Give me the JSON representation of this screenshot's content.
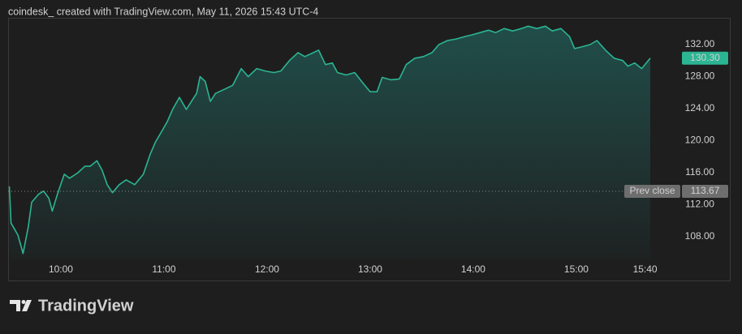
{
  "header": "coindesk_ created with TradingView.com, May 11, 2026 15:43 UTC-4",
  "footer": "TradingView",
  "chart_data": {
    "type": "area",
    "x": [
      570,
      571,
      575,
      578,
      581,
      583,
      587,
      590,
      593,
      595,
      598,
      602,
      605,
      610,
      614,
      617,
      621,
      624,
      627,
      630,
      634,
      638,
      643,
      648,
      652,
      655,
      658,
      662,
      665,
      669,
      673,
      676,
      679,
      681,
      684,
      687,
      690,
      695,
      700,
      705,
      709,
      714,
      719,
      724,
      728,
      733,
      738,
      742,
      747,
      750,
      754,
      758,
      761,
      766,
      771,
      775,
      780,
      784,
      787,
      792,
      797,
      801,
      806,
      811,
      816,
      820,
      825,
      830,
      835,
      839,
      844,
      849,
      853,
      858,
      863,
      868,
      872,
      877,
      882,
      886,
      891,
      896,
      899,
      903,
      908,
      912,
      917,
      922,
      927,
      930,
      934,
      938,
      943
    ],
    "series": [
      {
        "color": "#2bb592",
        "values": [
          114.3,
          109.7,
          108.2,
          105.9,
          109.2,
          112.3,
          113.3,
          113.7,
          112.8,
          111.2,
          113.3,
          115.8,
          115.3,
          116.0,
          116.8,
          116.8,
          117.5,
          116.3,
          114.5,
          113.5,
          114.5,
          115.1,
          114.5,
          115.8,
          118.3,
          119.8,
          120.9,
          122.4,
          123.9,
          125.4,
          123.9,
          124.9,
          125.9,
          128.0,
          127.4,
          124.9,
          125.9,
          126.4,
          126.9,
          129.0,
          128.0,
          129.0,
          128.7,
          128.5,
          128.7,
          130.0,
          131.0,
          130.5,
          131.0,
          131.3,
          129.5,
          129.7,
          128.5,
          128.2,
          128.5,
          127.4,
          126.1,
          126.1,
          127.9,
          127.6,
          127.7,
          129.5,
          130.3,
          130.5,
          131.0,
          132.0,
          132.5,
          132.7,
          133.0,
          133.2,
          133.5,
          133.8,
          133.5,
          134.0,
          133.7,
          134.0,
          134.3,
          134.0,
          134.3,
          133.7,
          134.0,
          133.0,
          131.5,
          131.7,
          132.0,
          132.5,
          131.3,
          130.3,
          130.0,
          129.3,
          129.7,
          129.0,
          130.3
        ]
      }
    ],
    "xlim": [
      569.3,
      952
    ],
    "xticks": [
      {
        "value": 600,
        "label": "10:00"
      },
      {
        "value": 660,
        "label": "11:00"
      },
      {
        "value": 720,
        "label": "12:00"
      },
      {
        "value": 780,
        "label": "13:00"
      },
      {
        "value": 840,
        "label": "14:00"
      },
      {
        "value": 900,
        "label": "15:00"
      },
      {
        "value": 940,
        "label": "15:40"
      }
    ],
    "ylim": [
      105.16,
      135.34
    ],
    "yticks": [
      {
        "value": 108,
        "label": "108.00"
      },
      {
        "value": 112,
        "label": "112.00"
      },
      {
        "value": 116,
        "label": "116.00"
      },
      {
        "value": 120,
        "label": "120.00"
      },
      {
        "value": 124,
        "label": "124.00"
      },
      {
        "value": 128,
        "label": "128.00"
      },
      {
        "value": 132,
        "label": "132.00"
      }
    ],
    "last_price": {
      "value": 130.3,
      "label": "130.30"
    },
    "prev_close": {
      "name": "Prev close",
      "value": 113.67
    },
    "grid": false
  }
}
